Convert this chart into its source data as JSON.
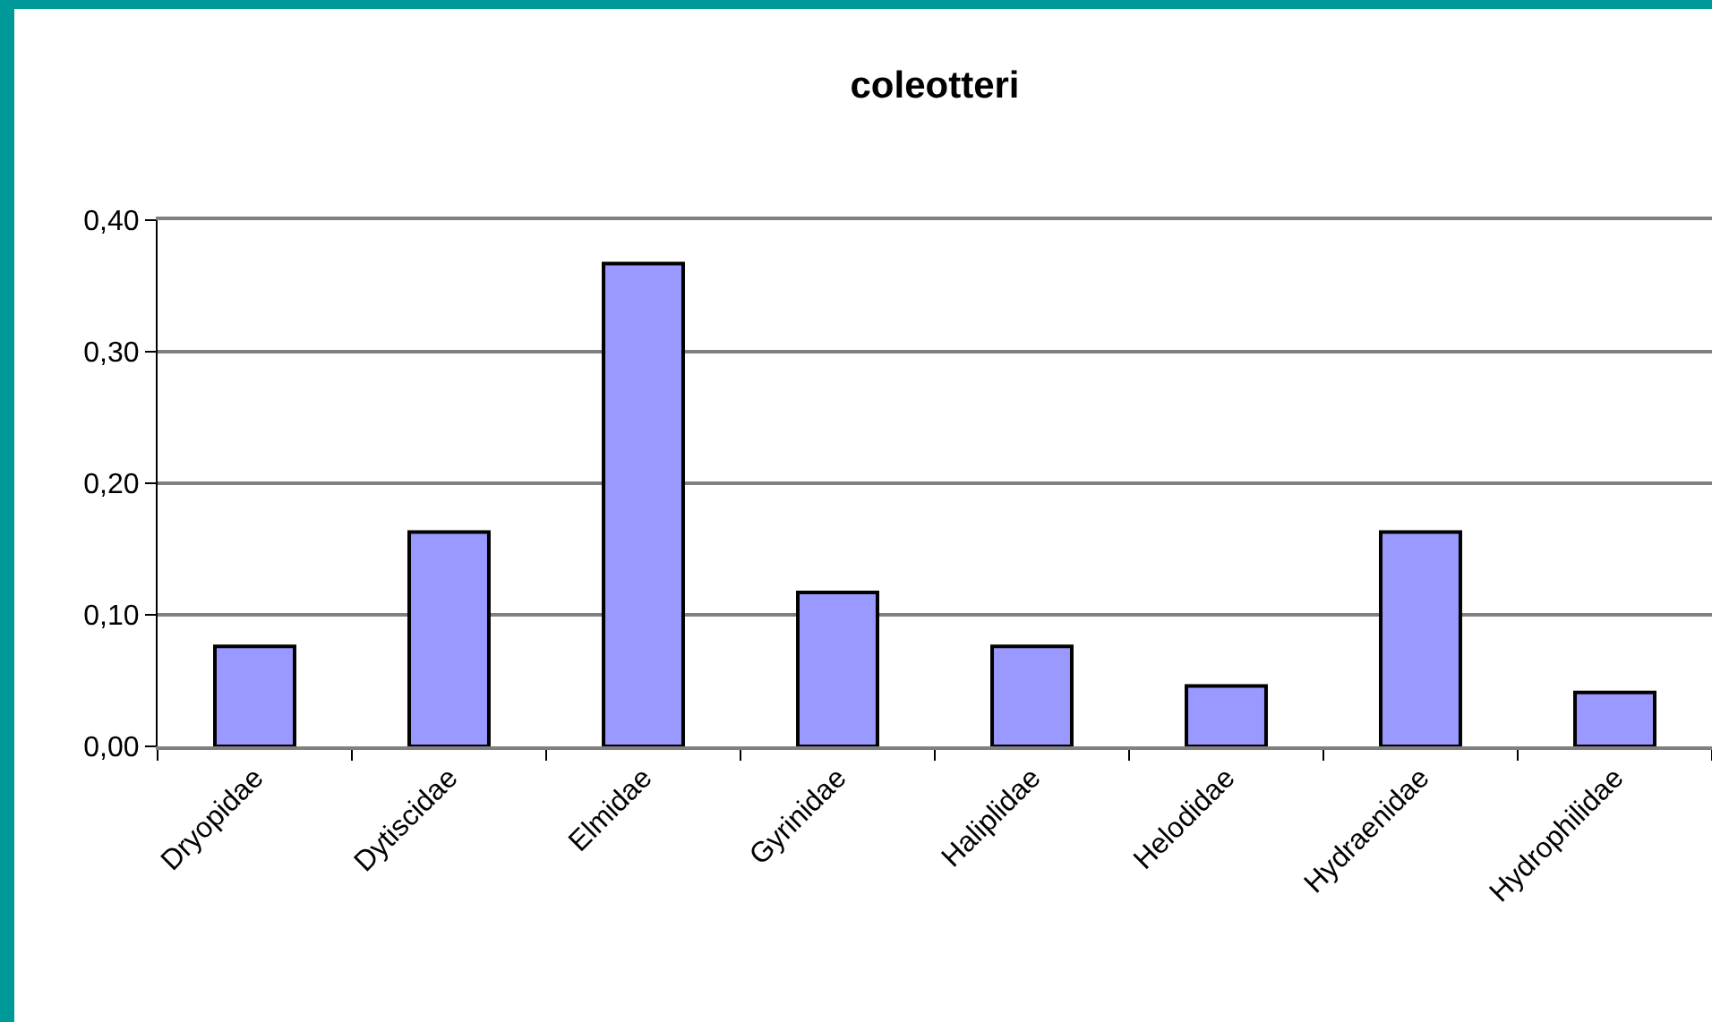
{
  "chart_data": {
    "type": "bar",
    "title": "coleotteri",
    "categories": [
      "Dryopidae",
      "Dytiscidae",
      "Elmidae",
      "Gyrinidae",
      "Haliplidae",
      "Helodidae",
      "Hydraenidae",
      "Hydrophilidae"
    ],
    "values": [
      0.076,
      0.163,
      0.367,
      0.117,
      0.076,
      0.046,
      0.163,
      0.041
    ],
    "color": "#9999ff",
    "ylim": [
      0,
      0.4
    ],
    "yticks": [
      {
        "value": 0,
        "label": "0,00"
      },
      {
        "value": 0.1,
        "label": "0,10"
      },
      {
        "value": 0.2,
        "label": "0,20"
      },
      {
        "value": 0.3,
        "label": "0,30"
      },
      {
        "value": 0.4,
        "label": "0,40"
      }
    ],
    "grid": "y"
  }
}
